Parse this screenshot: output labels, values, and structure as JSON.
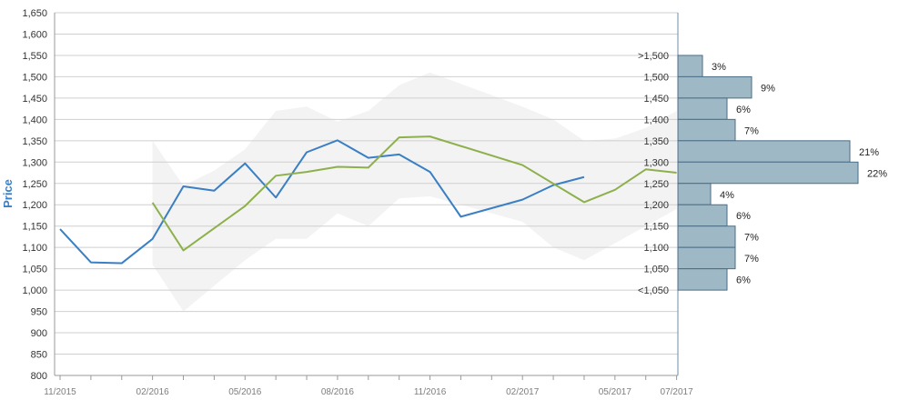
{
  "chart_data": {
    "type": "line",
    "ylabel": "Price",
    "ylim": [
      800,
      1650
    ],
    "y_ticks": [
      "800",
      "850",
      "900",
      "950",
      "1,000",
      "1,050",
      "1,100",
      "1,150",
      "1,200",
      "1,250",
      "1,300",
      "1,350",
      "1,400",
      "1,450",
      "1,500",
      "1,550",
      "1,600",
      "1,650"
    ],
    "y_tick_values": [
      800,
      850,
      900,
      950,
      1000,
      1050,
      1100,
      1150,
      1200,
      1250,
      1300,
      1350,
      1400,
      1450,
      1500,
      1550,
      1600,
      1650
    ],
    "x_tick_labels": [
      "11/2015",
      "02/2016",
      "05/2016",
      "08/2016",
      "11/2016",
      "02/2017",
      "05/2017",
      "07/2017"
    ],
    "x_tick_months": [
      0,
      3,
      6,
      9,
      12,
      15,
      18,
      20
    ],
    "x_unit": "months since 11/2015",
    "series": [
      {
        "color": "#3a7fc4",
        "x": [
          0,
          1,
          2,
          3,
          4,
          5,
          6,
          7,
          8,
          9,
          10,
          11,
          12,
          13,
          15,
          16,
          17
        ],
        "values": [
          1143,
          1065,
          1063,
          1120,
          1243,
          1233,
          1297,
          1217,
          1323,
          1351,
          1310,
          1318,
          1277,
          1172,
          1212,
          1246,
          1265
        ]
      },
      {
        "color": "#8db04c",
        "x": [
          3,
          4,
          6,
          7,
          8,
          9,
          10,
          11,
          12,
          15,
          17,
          18,
          19,
          20
        ],
        "values": [
          1205,
          1093,
          1197,
          1268,
          1277,
          1289,
          1287,
          1358,
          1360,
          1293,
          1206,
          1235,
          1283,
          1275
        ]
      }
    ],
    "range_band": {
      "color": "#ebebeb",
      "x": [
        3,
        4,
        5,
        6,
        7,
        8,
        9,
        10,
        11,
        12,
        15,
        16,
        17,
        18,
        19,
        20
      ],
      "upper": [
        1350,
        1245,
        1280,
        1330,
        1420,
        1430,
        1395,
        1420,
        1480,
        1510,
        1430,
        1400,
        1350,
        1355,
        1380,
        1420
      ],
      "lower": [
        1060,
        950,
        1010,
        1070,
        1120,
        1120,
        1180,
        1150,
        1215,
        1220,
        1160,
        1100,
        1070,
        1110,
        1150,
        1190
      ]
    },
    "histogram": {
      "color": "#9eb8c6",
      "bins": [
        {
          "label": ">1,500",
          "pct": "3%",
          "value": 3
        },
        {
          "label": "1,500",
          "pct": "9%",
          "value": 9
        },
        {
          "label": "1,450",
          "pct": "6%",
          "value": 6
        },
        {
          "label": "1,400",
          "pct": "7%",
          "value": 7
        },
        {
          "label": "1,350",
          "pct": "21%",
          "value": 21
        },
        {
          "label": "1,300",
          "pct": "22%",
          "value": 22
        },
        {
          "label": "1,250",
          "pct": "4%",
          "value": 4
        },
        {
          "label": "1,200",
          "pct": "6%",
          "value": 6
        },
        {
          "label": "1,150",
          "pct": "7%",
          "value": 7
        },
        {
          "label": "1,100",
          "pct": "7%",
          "value": 7
        },
        {
          "label": "1,050",
          "pct": "6%",
          "value": 6
        }
      ],
      "extra_label": "<1,050"
    },
    "grid": true
  }
}
